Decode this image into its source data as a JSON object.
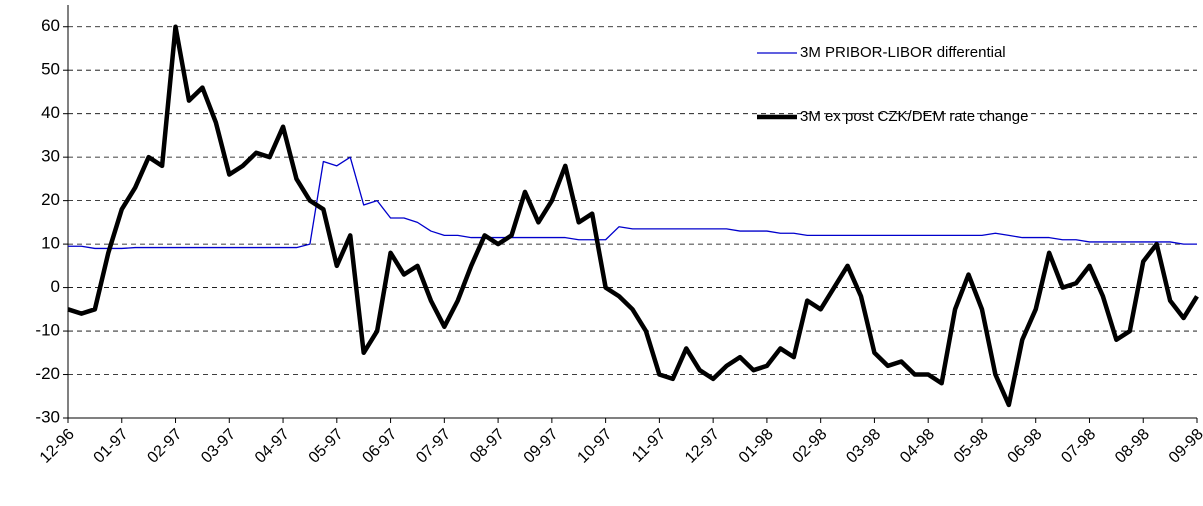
{
  "chart_data": {
    "type": "line",
    "categories": [
      "12-96",
      null,
      null,
      null,
      "01-97",
      null,
      null,
      null,
      "02-97",
      null,
      null,
      null,
      "03-97",
      null,
      null,
      null,
      "04-97",
      null,
      null,
      null,
      "05-97",
      null,
      null,
      null,
      "06-97",
      null,
      null,
      null,
      "07-97",
      null,
      null,
      null,
      "08-97",
      null,
      null,
      null,
      "09-97",
      null,
      null,
      null,
      "10-97",
      null,
      null,
      null,
      "11-97",
      null,
      null,
      null,
      "12-97",
      null,
      null,
      null,
      "01-98",
      null,
      null,
      null,
      "02-98",
      null,
      null,
      null,
      "03-98",
      null,
      null,
      null,
      "04-98",
      null,
      null,
      null,
      "05-98",
      null,
      null,
      null,
      "06-98",
      null,
      null,
      null,
      "07-98",
      null,
      null,
      null,
      "08-98",
      null,
      null,
      null,
      "09-98"
    ],
    "series": [
      {
        "name": "3M PRIBOR-LIBOR differential",
        "color": "#0000cc",
        "values": [
          9.5,
          9.5,
          9,
          9,
          9,
          9.2,
          9.2,
          9.2,
          9.2,
          9.2,
          9.2,
          9.2,
          9.2,
          9.2,
          9.2,
          9.2,
          9.2,
          9.2,
          10,
          29,
          28,
          30,
          19,
          20,
          16,
          16,
          15,
          13,
          12,
          12,
          11.5,
          11.5,
          11.5,
          11.5,
          11.5,
          11.5,
          11.5,
          11.5,
          11,
          11,
          11,
          14,
          13.5,
          13.5,
          13.5,
          13.5,
          13.5,
          13.5,
          13.5,
          13.5,
          13,
          13,
          13,
          12.5,
          12.5,
          12,
          12,
          12,
          12,
          12,
          12,
          12,
          12,
          12,
          12,
          12,
          12,
          12,
          12,
          12.5,
          12,
          11.5,
          11.5,
          11.5,
          11,
          11,
          10.5,
          10.5,
          10.5,
          10.5,
          10.5,
          10.5,
          10.5,
          10,
          10
        ]
      },
      {
        "name": "3M ex post CZK/DEM rate change",
        "color": "#000000",
        "values": [
          -5,
          -6,
          -5,
          8,
          18,
          23,
          30,
          28,
          60,
          43,
          46,
          38,
          26,
          28,
          31,
          30,
          37,
          25,
          20,
          18,
          5,
          12,
          -15,
          -10,
          8,
          3,
          5,
          -3,
          -9,
          -3,
          5,
          12,
          10,
          12,
          22,
          15,
          20,
          28,
          15,
          17,
          0,
          -2,
          -5,
          -10,
          -20,
          -21,
          -14,
          -19,
          -21,
          -18,
          -16,
          -19,
          -18,
          -14,
          -16,
          -3,
          -5,
          0,
          5,
          -2,
          -15,
          -18,
          -17,
          -20,
          -20,
          -22,
          -5,
          3,
          -5,
          -20,
          -27,
          -12,
          -5,
          8,
          0,
          1,
          5,
          -2,
          -12,
          -10,
          6,
          10,
          -3,
          -7,
          -2
        ]
      }
    ],
    "ylim": [
      -30,
      65
    ],
    "yticks": [
      -30,
      -20,
      -10,
      0,
      10,
      20,
      30,
      40,
      50,
      60
    ],
    "grid": true
  }
}
